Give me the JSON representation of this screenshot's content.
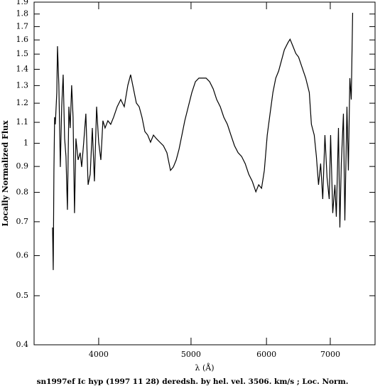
{
  "chart_data": {
    "type": "line",
    "title": "sn1997ef Ic hyp (1997 11 28) deredsh. by hel. vel.  3506. km/s ;  Loc. Norm.",
    "x_label": "λ (Å)",
    "y_label": "Locally Normalized Flux",
    "x_scale": "log",
    "y_scale": "log",
    "xlim": [
      3422,
      7800
    ],
    "ylim": [
      0.4,
      1.9
    ],
    "xticks": [
      4000,
      5000,
      6000,
      7000
    ],
    "yticks": [
      0.4,
      0.5,
      0.6,
      0.7,
      0.8,
      0.9,
      1,
      1.1,
      1.2,
      1.3,
      1.4,
      1.5,
      1.6,
      1.7,
      1.8,
      1.9
    ],
    "grid": false,
    "series": [
      {
        "color": "#000000",
        "x": [
          3578,
          3584,
          3590,
          3596,
          3602,
          3615,
          3621,
          3633,
          3646,
          3658,
          3671,
          3684,
          3696,
          3709,
          3722,
          3734,
          3747,
          3760,
          3773,
          3786,
          3806,
          3825,
          3839,
          3858,
          3878,
          3899,
          3919,
          3939,
          3959,
          3980,
          4000,
          4021,
          4041,
          4062,
          4090,
          4118,
          4147,
          4183,
          4219,
          4255,
          4292,
          4321,
          4351,
          4381,
          4411,
          4441,
          4472,
          4503,
          4534,
          4566,
          4597,
          4637,
          4677,
          4717,
          4758,
          4791,
          4824,
          4857,
          4891,
          4925,
          4967,
          5010,
          5053,
          5096,
          5140,
          5185,
          5230,
          5275,
          5320,
          5366,
          5412,
          5459,
          5506,
          5554,
          5602,
          5650,
          5699,
          5748,
          5798,
          5848,
          5888,
          5929,
          5969,
          6011,
          6052,
          6094,
          6136,
          6179,
          6222,
          6265,
          6319,
          6352,
          6396,
          6440,
          6484,
          6540,
          6597,
          6654,
          6688,
          6734,
          6769,
          6804,
          6839,
          6874,
          6910,
          6946,
          6982,
          7006,
          7042,
          7079,
          7103,
          7140,
          7164,
          7189,
          7226,
          7251,
          7288,
          7313,
          7339,
          7364,
          7389
        ],
        "values": [
          0.682,
          0.562,
          0.884,
          1.126,
          1.09,
          1.26,
          1.555,
          1.302,
          0.898,
          1.181,
          1.366,
          1.022,
          0.942,
          0.739,
          1.181,
          1.072,
          1.302,
          1.126,
          0.728,
          1.022,
          0.927,
          0.958,
          0.898,
          1.005,
          1.144,
          0.828,
          0.869,
          1.072,
          0.841,
          1.181,
          1.005,
          0.927,
          1.108,
          1.072,
          1.108,
          1.09,
          1.126,
          1.181,
          1.22,
          1.181,
          1.302,
          1.366,
          1.281,
          1.201,
          1.181,
          1.126,
          1.055,
          1.038,
          1.005,
          1.038,
          1.022,
          1.005,
          0.989,
          0.958,
          0.884,
          0.898,
          0.927,
          0.973,
          1.038,
          1.108,
          1.181,
          1.26,
          1.323,
          1.345,
          1.345,
          1.345,
          1.323,
          1.281,
          1.22,
          1.181,
          1.126,
          1.09,
          1.038,
          0.989,
          0.958,
          0.942,
          0.912,
          0.869,
          0.841,
          0.802,
          0.828,
          0.815,
          0.884,
          1.038,
          1.144,
          1.26,
          1.345,
          1.389,
          1.458,
          1.53,
          1.58,
          1.605,
          1.555,
          1.505,
          1.48,
          1.411,
          1.345,
          1.26,
          1.09,
          1.038,
          0.942,
          0.828,
          0.912,
          0.776,
          1.038,
          0.855,
          0.776,
          1.038,
          0.728,
          0.828,
          0.716,
          1.072,
          0.682,
          0.912,
          1.144,
          0.704,
          1.181,
          0.884,
          1.345,
          1.22,
          1.81
        ]
      }
    ]
  }
}
